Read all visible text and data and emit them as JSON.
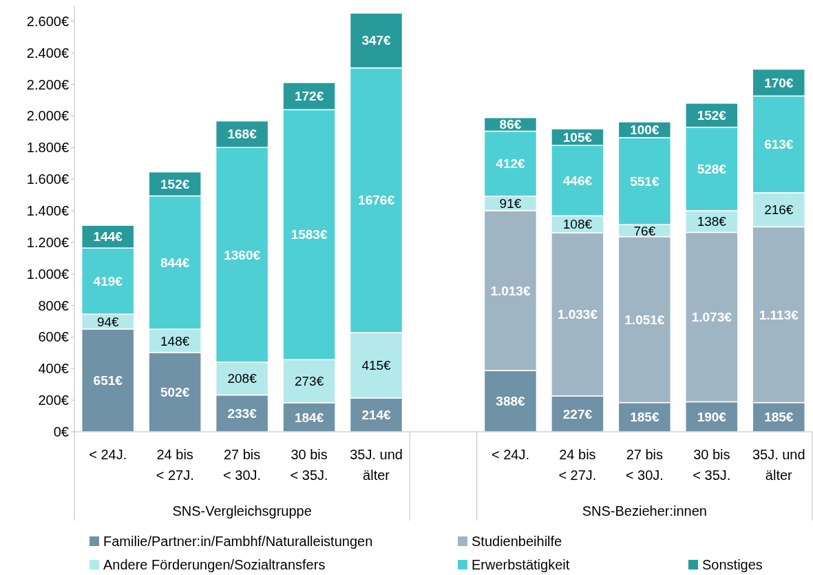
{
  "chart_data": {
    "type": "bar",
    "stacked": true,
    "categories": [
      "< 24J.",
      "24 bis\n< 27J.",
      "27 bis\n< 30J.",
      "30 bis\n< 35J.",
      "35J. und\nälter",
      null,
      "< 24J.",
      "24 bis\n< 27J.",
      "27 bis\n< 30J.",
      "30 bis\n< 35J.",
      "35J. und\nälter"
    ],
    "annotations": [
      "SNS-Vergleichsgruppe",
      "SNS-Bezieher:innen"
    ],
    "ylim": [
      0,
      2700
    ],
    "yticks": [
      {
        "value": 0,
        "label": "0€"
      },
      {
        "value": 200,
        "label": "200€"
      },
      {
        "value": 400,
        "label": "400€"
      },
      {
        "value": 600,
        "label": "600€"
      },
      {
        "value": 800,
        "label": "800€"
      },
      {
        "value": 1000,
        "label": "1.000€"
      },
      {
        "value": 1200,
        "label": "1.200€"
      },
      {
        "value": 1400,
        "label": "1.400€"
      },
      {
        "value": 1600,
        "label": "1.600€"
      },
      {
        "value": 1800,
        "label": "1.800€"
      },
      {
        "value": 2000,
        "label": "2.000€"
      },
      {
        "value": 2200,
        "label": "2.200€"
      },
      {
        "value": 2400,
        "label": "2.400€"
      },
      {
        "value": 2600,
        "label": "2.600€"
      }
    ],
    "legend": "bottom",
    "series": [
      {
        "name": "Familie/Partner:in/Fambhf/Naturalleistungen",
        "color": "#7092a6",
        "values": [
          651,
          502,
          233,
          184,
          214,
          null,
          388,
          227,
          185,
          190,
          185
        ],
        "value_labels": [
          "651€",
          "502€",
          "233€",
          "184€",
          "214€",
          null,
          "388€",
          "227€",
          "185€",
          "190€",
          "185€"
        ]
      },
      {
        "name": "Studienbeihilfe",
        "color": "#a0b5c3",
        "values": [
          null,
          null,
          null,
          null,
          null,
          null,
          1013,
          1033,
          1051,
          1073,
          1113
        ],
        "value_labels": [
          null,
          null,
          null,
          null,
          null,
          null,
          "1.013€",
          "1.033€",
          "1.051€",
          "1.073€",
          "1.113€"
        ]
      },
      {
        "name": "Andere Förderungen/Sozialtransfers",
        "color": "#b4e9ec",
        "values": [
          94,
          148,
          208,
          273,
          415,
          null,
          91,
          108,
          76,
          138,
          216
        ],
        "value_labels": [
          "94€",
          "148€",
          "208€",
          "273€",
          "415€",
          null,
          "91€",
          "108€",
          "76€",
          "138€",
          "216€"
        ]
      },
      {
        "name": "Erwerbstätigkeit",
        "color": "#4ecfd3",
        "values": [
          419,
          844,
          1360,
          1583,
          1676,
          null,
          412,
          446,
          551,
          528,
          613
        ],
        "value_labels": [
          "419€",
          "844€",
          "1360€",
          "1583€",
          "1676€",
          null,
          "412€",
          "446€",
          "551€",
          "528€",
          "613€"
        ]
      },
      {
        "name": "Sonstiges",
        "color": "#289a9c",
        "values": [
          144,
          152,
          168,
          172,
          347,
          null,
          86,
          105,
          100,
          152,
          170
        ],
        "value_labels": [
          "144€",
          "152€",
          "168€",
          "172€",
          "347€",
          null,
          "86€",
          "105€",
          "100€",
          "152€",
          "170€"
        ]
      }
    ]
  }
}
